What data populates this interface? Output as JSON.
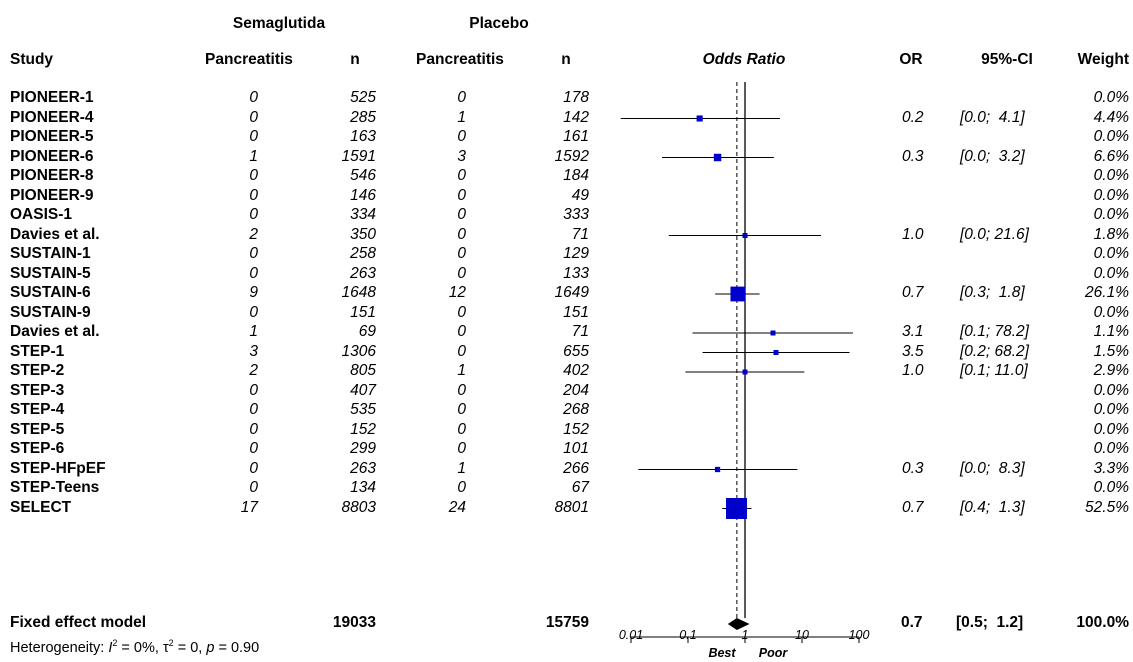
{
  "chart_data": {
    "type": "forest",
    "group_headers": {
      "treatment": "Semaglutida",
      "control": "Placebo"
    },
    "columns": {
      "study": "Study",
      "events_treatment": "Pancreatitis",
      "n_treatment": "n",
      "events_control": "Pancreatitis",
      "n_control": "n",
      "effect": "Odds Ratio",
      "or": "OR",
      "ci": "95%-CI",
      "weight": "Weight"
    },
    "studies": [
      {
        "name": "PIONEER-1",
        "e1": "0",
        "n1": "525",
        "e2": "0",
        "n2": "178",
        "or": "",
        "ci": "",
        "weight": "0.0%",
        "est": null,
        "lo": null,
        "hi": null,
        "w": 0
      },
      {
        "name": "PIONEER-4",
        "e1": "0",
        "n1": "285",
        "e2": "1",
        "n2": "142",
        "or": "0.2",
        "ci": "[0.0;  4.1]",
        "weight": "4.4%",
        "est": 0.16,
        "lo": 0.0066,
        "hi": 4.1,
        "w": 4.4
      },
      {
        "name": "PIONEER-5",
        "e1": "0",
        "n1": "163",
        "e2": "0",
        "n2": "161",
        "or": "",
        "ci": "",
        "weight": "0.0%",
        "est": null,
        "lo": null,
        "hi": null,
        "w": 0
      },
      {
        "name": "PIONEER-6",
        "e1": "1",
        "n1": "1591",
        "e2": "3",
        "n2": "1592",
        "or": "0.3",
        "ci": "[0.0;  3.2]",
        "weight": "6.6%",
        "est": 0.33,
        "lo": 0.035,
        "hi": 3.2,
        "w": 6.6
      },
      {
        "name": "PIONEER-8",
        "e1": "0",
        "n1": "546",
        "e2": "0",
        "n2": "184",
        "or": "",
        "ci": "",
        "weight": "0.0%",
        "est": null,
        "lo": null,
        "hi": null,
        "w": 0
      },
      {
        "name": "PIONEER-9",
        "e1": "0",
        "n1": "146",
        "e2": "0",
        "n2": "49",
        "or": "",
        "ci": "",
        "weight": "0.0%",
        "est": null,
        "lo": null,
        "hi": null,
        "w": 0
      },
      {
        "name": "OASIS-1",
        "e1": "0",
        "n1": "334",
        "e2": "0",
        "n2": "333",
        "or": "",
        "ci": "",
        "weight": "0.0%",
        "est": null,
        "lo": null,
        "hi": null,
        "w": 0
      },
      {
        "name": "Davies et al.",
        "e1": "2",
        "n1": "350",
        "e2": "0",
        "n2": "71",
        "or": "1.0",
        "ci": "[0.0; 21.6]",
        "weight": "1.8%",
        "est": 1.0,
        "lo": 0.046,
        "hi": 21.6,
        "w": 1.8
      },
      {
        "name": "SUSTAIN-1",
        "e1": "0",
        "n1": "258",
        "e2": "0",
        "n2": "129",
        "or": "",
        "ci": "",
        "weight": "0.0%",
        "est": null,
        "lo": null,
        "hi": null,
        "w": 0
      },
      {
        "name": "SUSTAIN-5",
        "e1": "0",
        "n1": "263",
        "e2": "0",
        "n2": "133",
        "or": "",
        "ci": "",
        "weight": "0.0%",
        "est": null,
        "lo": null,
        "hi": null,
        "w": 0
      },
      {
        "name": "SUSTAIN-6",
        "e1": "9",
        "n1": "1648",
        "e2": "12",
        "n2": "1649",
        "or": "0.7",
        "ci": "[0.3;  1.8]",
        "weight": "26.1%",
        "est": 0.75,
        "lo": 0.3,
        "hi": 1.8,
        "w": 26.1
      },
      {
        "name": "SUSTAIN-9",
        "e1": "0",
        "n1": "151",
        "e2": "0",
        "n2": "151",
        "or": "",
        "ci": "",
        "weight": "0.0%",
        "est": null,
        "lo": null,
        "hi": null,
        "w": 0
      },
      {
        "name": "Davies et al.",
        "e1": "1",
        "n1": "69",
        "e2": "0",
        "n2": "71",
        "or": "3.1",
        "ci": "[0.1; 78.2]",
        "weight": "1.1%",
        "est": 3.1,
        "lo": 0.12,
        "hi": 78.2,
        "w": 1.1
      },
      {
        "name": "STEP-1",
        "e1": "3",
        "n1": "1306",
        "e2": "0",
        "n2": "655",
        "or": "3.5",
        "ci": "[0.2; 68.2]",
        "weight": "1.5%",
        "est": 3.5,
        "lo": 0.18,
        "hi": 68.2,
        "w": 1.5
      },
      {
        "name": "STEP-2",
        "e1": "2",
        "n1": "805",
        "e2": "1",
        "n2": "402",
        "or": "1.0",
        "ci": "[0.1; 11.0]",
        "weight": "2.9%",
        "est": 1.0,
        "lo": 0.09,
        "hi": 11.0,
        "w": 2.9
      },
      {
        "name": "STEP-3",
        "e1": "0",
        "n1": "407",
        "e2": "0",
        "n2": "204",
        "or": "",
        "ci": "",
        "weight": "0.0%",
        "est": null,
        "lo": null,
        "hi": null,
        "w": 0
      },
      {
        "name": "STEP-4",
        "e1": "0",
        "n1": "535",
        "e2": "0",
        "n2": "268",
        "or": "",
        "ci": "",
        "weight": "0.0%",
        "est": null,
        "lo": null,
        "hi": null,
        "w": 0
      },
      {
        "name": "STEP-5",
        "e1": "0",
        "n1": "152",
        "e2": "0",
        "n2": "152",
        "or": "",
        "ci": "",
        "weight": "0.0%",
        "est": null,
        "lo": null,
        "hi": null,
        "w": 0
      },
      {
        "name": "STEP-6",
        "e1": "0",
        "n1": "299",
        "e2": "0",
        "n2": "101",
        "or": "",
        "ci": "",
        "weight": "0.0%",
        "est": null,
        "lo": null,
        "hi": null,
        "w": 0
      },
      {
        "name": "STEP-HFpEF",
        "e1": "0",
        "n1": "263",
        "e2": "1",
        "n2": "266",
        "or": "0.3",
        "ci": "[0.0;  8.3]",
        "weight": "3.3%",
        "est": 0.33,
        "lo": 0.0135,
        "hi": 8.3,
        "w": 3.3
      },
      {
        "name": "STEP-Teens",
        "e1": "0",
        "n1": "134",
        "e2": "0",
        "n2": "67",
        "or": "",
        "ci": "",
        "weight": "0.0%",
        "est": null,
        "lo": null,
        "hi": null,
        "w": 0
      },
      {
        "name": "SELECT",
        "e1": "17",
        "n1": "8803",
        "e2": "24",
        "n2": "8801",
        "or": "0.7",
        "ci": "[0.4;  1.3]",
        "weight": "52.5%",
        "est": 0.71,
        "lo": 0.4,
        "hi": 1.3,
        "w": 52.5
      }
    ],
    "summary": {
      "label": "Fixed effect model",
      "n1": "19033",
      "n2": "15759",
      "or": "0.7",
      "ci": "[0.5;  1.2]",
      "weight": "100.0%",
      "est": 0.72,
      "lo": 0.5,
      "hi": 1.2
    },
    "heterogeneity": {
      "prefix": "Heterogeneity: ",
      "i2_symbol": "I",
      "i2_value": " = 0%, ",
      "tau_symbol": "τ",
      "tau_value": " = 0, ",
      "p_symbol": "p",
      "p_value": " = 0.90"
    },
    "x_axis": {
      "scale": "log",
      "ticks": [
        0.01,
        0.1,
        1,
        10,
        100
      ],
      "tick_labels": [
        "0.01",
        "0.1",
        "1",
        "10",
        "100"
      ],
      "reference_line": 1,
      "left_label": "Best",
      "right_label": "Poor"
    },
    "colors": {
      "square": "#0000cc",
      "diamond": "#000000",
      "line": "#000000"
    }
  }
}
